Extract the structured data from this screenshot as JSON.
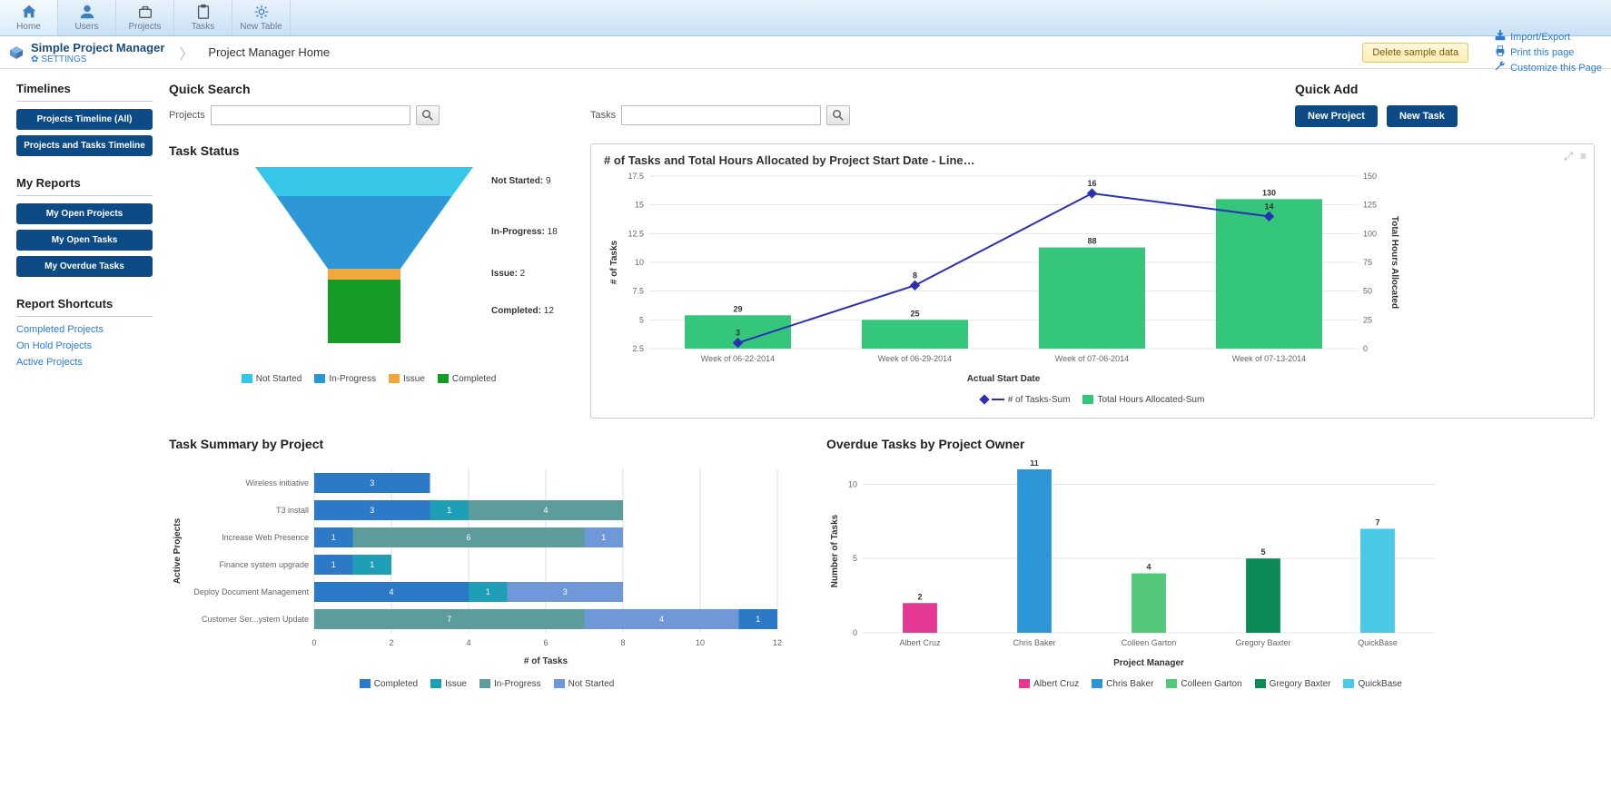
{
  "toolbar": {
    "items": [
      {
        "label": "Home",
        "active": true,
        "icon": "home"
      },
      {
        "label": "Users",
        "active": false,
        "icon": "user"
      },
      {
        "label": "Projects",
        "active": false,
        "icon": "briefcase"
      },
      {
        "label": "Tasks",
        "active": false,
        "icon": "clipboard"
      },
      {
        "label": "New Table",
        "active": false,
        "icon": "gear"
      }
    ]
  },
  "breadcrumb": {
    "app": "Simple Project Manager",
    "settings": "SETTINGS",
    "page": "Project Manager Home",
    "delete_btn": "Delete sample data",
    "links": [
      {
        "label": "Import/Export",
        "icon": "import"
      },
      {
        "label": "Print this page",
        "icon": "print"
      },
      {
        "label": "Customize this Page",
        "icon": "wrench"
      }
    ]
  },
  "sidebar": {
    "timelines": {
      "title": "Timelines",
      "buttons": [
        "Projects Timeline (All)",
        "Projects and Tasks Timeline"
      ]
    },
    "reports": {
      "title": "My Reports",
      "buttons": [
        "My Open Projects",
        "My Open Tasks",
        "My Overdue Tasks"
      ]
    },
    "shortcuts": {
      "title": "Report Shortcuts",
      "links": [
        "Completed Projects",
        "On Hold Projects",
        "Active Projects"
      ]
    }
  },
  "quick_search": {
    "title": "Quick Search",
    "projects_label": "Projects",
    "tasks_label": "Tasks"
  },
  "quick_add": {
    "title": "Quick Add",
    "new_project": "New Project",
    "new_task": "New Task"
  },
  "funnel": {
    "title": "Task Status",
    "segments": [
      {
        "label": "Not Started",
        "value": 9,
        "color": "#35c6e8"
      },
      {
        "label": "In-Progress",
        "value": 18,
        "color": "#2e98d6"
      },
      {
        "label": "Issue",
        "value": 2,
        "color": "#f3a63b"
      },
      {
        "label": "Completed",
        "value": 12,
        "color": "#159c27"
      }
    ],
    "legend": [
      "Not Started",
      "In-Progress",
      "Issue",
      "Completed"
    ]
  },
  "combo_chart": {
    "title": "# of Tasks and Total Hours Allocated by Project Start Date - Line…",
    "y_left_label": "# of Tasks",
    "y_right_label": "Total Hours Allocated",
    "x_label": "Actual Start Date",
    "y_left": {
      "min": 2.5,
      "max": 17.5,
      "step": 2.5
    },
    "y_right": {
      "min": 0,
      "max": 150,
      "step": 25
    },
    "categories": [
      "Week of 06-22-2014",
      "Week of 06-29-2014",
      "Week of 07-06-2014",
      "Week of 07-13-2014"
    ],
    "bars": {
      "color": "#34c77b",
      "values": [
        29,
        25,
        88,
        130
      ]
    },
    "line": {
      "color": "#2a2fb5",
      "marker": "diamond",
      "values": [
        3,
        8,
        16,
        14
      ],
      "point_labels": [
        "3",
        "8",
        "16",
        "14"
      ]
    },
    "legend": [
      {
        "label": "# of Tasks-Sum",
        "color": "#2a2fb5",
        "marker": true
      },
      {
        "label": "Total Hours Allocated-Sum",
        "color": "#34c77b",
        "marker": false
      }
    ],
    "grid_color": "#e5e5e5"
  },
  "stacked": {
    "title": "Task Summary by Project",
    "x_label": "# of Tasks",
    "y_label": "Active Projects",
    "x_max": 12,
    "x_step": 2,
    "series": [
      {
        "name": "Completed",
        "color": "#2c79c7"
      },
      {
        "name": "Issue",
        "color": "#1e9fb7"
      },
      {
        "name": "In-Progress",
        "color": "#5c9c9a"
      },
      {
        "name": "Not Started",
        "color": "#6f98d8"
      }
    ],
    "rows": [
      {
        "label": "Wireless initiative",
        "values": [
          3,
          0,
          0,
          0
        ]
      },
      {
        "label": "T3 install",
        "values": [
          3,
          1,
          4,
          0
        ]
      },
      {
        "label": "Increase Web Presence",
        "values": [
          1,
          0,
          6,
          1
        ]
      },
      {
        "label": "Finance system upgrade",
        "values": [
          1,
          1,
          0,
          0
        ]
      },
      {
        "label": "Deploy Document Management",
        "values": [
          4,
          1,
          0,
          3
        ]
      },
      {
        "label": "Customer Ser...ystem Update",
        "values": [
          0,
          0,
          7,
          4
        ],
        "extra": {
          "value": 1,
          "color": "#2c79c7"
        }
      }
    ]
  },
  "overdue": {
    "title": "Overdue Tasks by Project Owner",
    "y_label": "Number of Tasks",
    "x_label": "Project Manager",
    "y_max": 10,
    "y_step": 5,
    "bars": [
      {
        "label": "Albert Cruz",
        "value": 2,
        "color": "#e33894"
      },
      {
        "label": "Chris Baker",
        "value": 11,
        "color": "#2d97d5"
      },
      {
        "label": "Colleen Garton",
        "value": 4,
        "color": "#52c878"
      },
      {
        "label": "Gregory Baxter",
        "value": 5,
        "color": "#0b8a56"
      },
      {
        "label": "QuickBase",
        "value": 7,
        "color": "#4ac9e6"
      }
    ]
  }
}
